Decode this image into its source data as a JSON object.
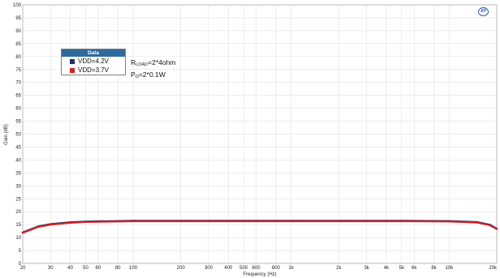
{
  "chart_data": {
    "type": "line",
    "xlabel": "Frequency (Hz)",
    "ylabel": "Gain (dB)",
    "xscale": "log",
    "xlim": [
      20,
      20000
    ],
    "ylim": [
      0,
      100
    ],
    "grid": true,
    "x_ticks": [
      {
        "v": 20,
        "l": "20"
      },
      {
        "v": 30,
        "l": "30"
      },
      {
        "v": 40,
        "l": "40"
      },
      {
        "v": 50,
        "l": "50"
      },
      {
        "v": 60,
        "l": "60"
      },
      {
        "v": 80,
        "l": "80"
      },
      {
        "v": 100,
        "l": "100"
      },
      {
        "v": 200,
        "l": "200"
      },
      {
        "v": 300,
        "l": "300"
      },
      {
        "v": 400,
        "l": "400"
      },
      {
        "v": 500,
        "l": "500"
      },
      {
        "v": 600,
        "l": "600"
      },
      {
        "v": 800,
        "l": "800"
      },
      {
        "v": 1000,
        "l": "1k"
      },
      {
        "v": 2000,
        "l": "2k"
      },
      {
        "v": 3000,
        "l": "3k"
      },
      {
        "v": 4000,
        "l": "4k"
      },
      {
        "v": 5000,
        "l": "5k"
      },
      {
        "v": 6000,
        "l": "6k"
      },
      {
        "v": 8000,
        "l": "8k"
      },
      {
        "v": 10000,
        "l": "10k"
      },
      {
        "v": 20000,
        "l": "20k"
      }
    ],
    "y_ticks": [
      0,
      5,
      10,
      15,
      20,
      25,
      30,
      35,
      40,
      45,
      50,
      55,
      60,
      65,
      70,
      75,
      80,
      85,
      90,
      95,
      100
    ],
    "legend": {
      "title": "Data",
      "placement": "top-left"
    },
    "series": [
      {
        "name": "VDD=4.2V",
        "color": "#1f2d6b",
        "x": [
          20,
          25,
          30,
          40,
          50,
          60,
          80,
          100,
          200,
          500,
          1000,
          2000,
          5000,
          10000,
          15000,
          18000,
          20000
        ],
        "y": [
          12.0,
          14.3,
          15.2,
          15.9,
          16.2,
          16.3,
          16.4,
          16.5,
          16.5,
          16.5,
          16.5,
          16.5,
          16.5,
          16.4,
          16.0,
          15.0,
          13.5
        ]
      },
      {
        "name": "VDD=3.7V",
        "color": "#d42020",
        "x": [
          20,
          25,
          30,
          40,
          50,
          60,
          80,
          100,
          200,
          500,
          1000,
          2000,
          5000,
          10000,
          15000,
          18000,
          20000
        ],
        "y": [
          11.8,
          14.1,
          15.0,
          15.7,
          16.0,
          16.1,
          16.2,
          16.3,
          16.3,
          16.3,
          16.3,
          16.3,
          16.3,
          16.2,
          15.8,
          14.8,
          13.3
        ]
      }
    ],
    "annotations": [
      {
        "main": "R",
        "sub": "LOAD",
        "rest": "=2*4ohm"
      },
      {
        "main": "P",
        "sub": "O",
        "rest": "=2*0.1W"
      }
    ]
  },
  "logo_text": "AP"
}
